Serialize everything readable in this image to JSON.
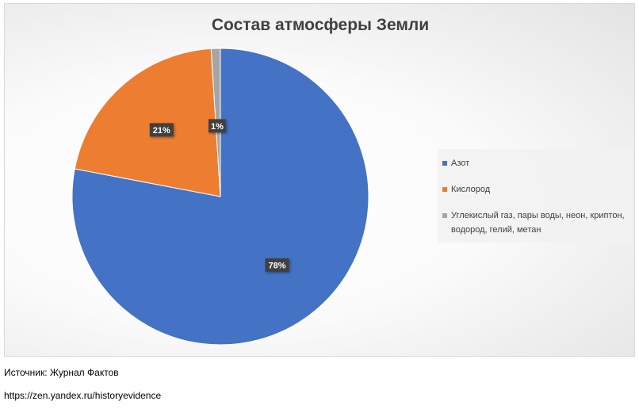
{
  "chart_data": {
    "type": "pie",
    "title": "Состав атмосферы Земли",
    "slices": [
      {
        "name": "Азот",
        "value": 78,
        "label": "78%",
        "color": "#4472c4"
      },
      {
        "name": "Кислород",
        "value": 21,
        "label": "21%",
        "color": "#ed7d31"
      },
      {
        "name": "Углекислый газ, пары воды, неон, криптон, водород, гелий, метан",
        "value": 1,
        "label": "1%",
        "color": "#a5a5a5"
      }
    ],
    "legend_position": "right"
  },
  "footer": {
    "source": "Источник: Журнал Фактов",
    "url": "https://zen.yandex.ru/historyevidence"
  }
}
